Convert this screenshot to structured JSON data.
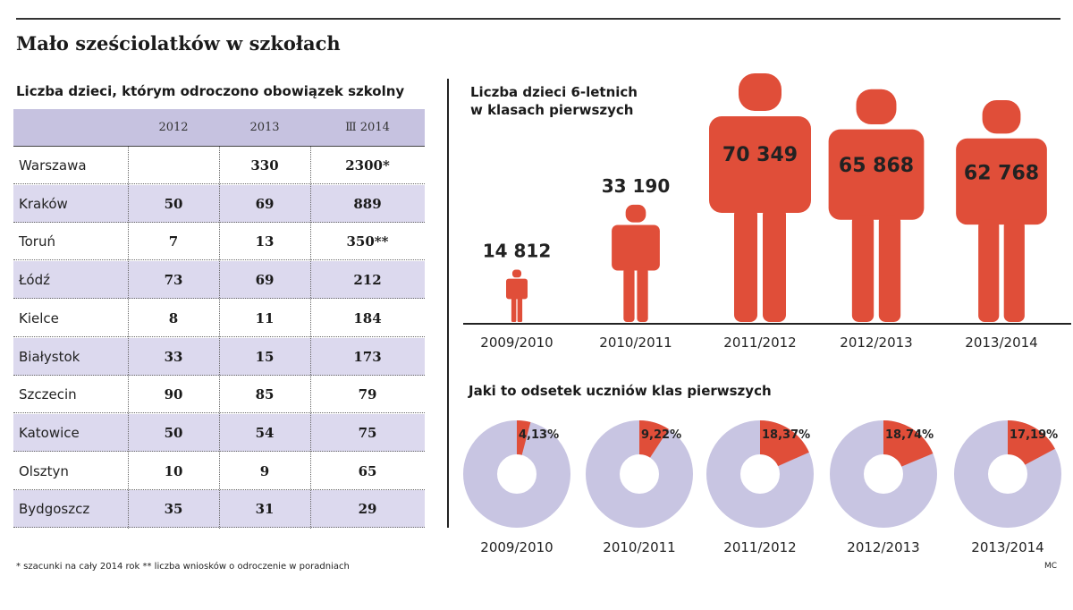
{
  "title": "Mało sześciolatków w szkołach",
  "table": {
    "title": "Liczba dzieci, którym odroczono obowiązek szkolny",
    "headers": [
      "",
      "2012",
      "2013",
      "Ⅲ 2014"
    ],
    "rows": [
      {
        "city": "Warszawa",
        "y2012": "",
        "y2013": "330",
        "y2014": "2300*"
      },
      {
        "city": "Kraków",
        "y2012": "50",
        "y2013": "69",
        "y2014": "889"
      },
      {
        "city": "Toruń",
        "y2012": "7",
        "y2013": "13",
        "y2014": "350**"
      },
      {
        "city": "Łódź",
        "y2012": "73",
        "y2013": "69",
        "y2014": "212"
      },
      {
        "city": "Kielce",
        "y2012": "8",
        "y2013": "11",
        "y2014": "184"
      },
      {
        "city": "Białystok",
        "y2012": "33",
        "y2013": "15",
        "y2014": "173"
      },
      {
        "city": "Szczecin",
        "y2012": "90",
        "y2013": "85",
        "y2014": "79"
      },
      {
        "city": "Katowice",
        "y2012": "50",
        "y2013": "54",
        "y2014": "75"
      },
      {
        "city": "Olsztyn",
        "y2012": "10",
        "y2013": "9",
        "y2014": "65"
      },
      {
        "city": "Bydgoszcz",
        "y2012": "35",
        "y2013": "31",
        "y2014": "29"
      }
    ],
    "footnotes": "* szacunki na cały 2014 rok     ** liczba wniosków o odroczenie w poradniach",
    "credit": "MC"
  },
  "colors": {
    "accent": "#e04e39",
    "ring": "#c8c5e2",
    "row_shade": "#dcd9ee",
    "header_shade": "#c6c2e0"
  },
  "chart_data": [
    {
      "type": "bar",
      "title": "Liczba dzieci 6-letnich w klasach pierwszych",
      "title_lines": [
        "Liczba dzieci 6-letnich",
        "w klasach pierwszych"
      ],
      "categories": [
        "2009/2010",
        "2010/2011",
        "2011/2012",
        "2012/2013",
        "2013/2014"
      ],
      "values": [
        14812,
        33190,
        70349,
        65868,
        62768
      ],
      "labels": [
        "14 812",
        "33 190",
        "70 349",
        "65 868",
        "62 768"
      ],
      "marker": "person-pictogram"
    },
    {
      "type": "pie",
      "title": "Jaki to odsetek uczniów klas pierwszych",
      "categories": [
        "2009/2010",
        "2010/2011",
        "2011/2012",
        "2012/2013",
        "2013/2014"
      ],
      "values": [
        4.13,
        9.22,
        18.37,
        18.74,
        17.19
      ],
      "labels": [
        "4,13%",
        "9,22%",
        "18,37%",
        "18,74%",
        "17,19%"
      ],
      "style": "donut"
    }
  ]
}
